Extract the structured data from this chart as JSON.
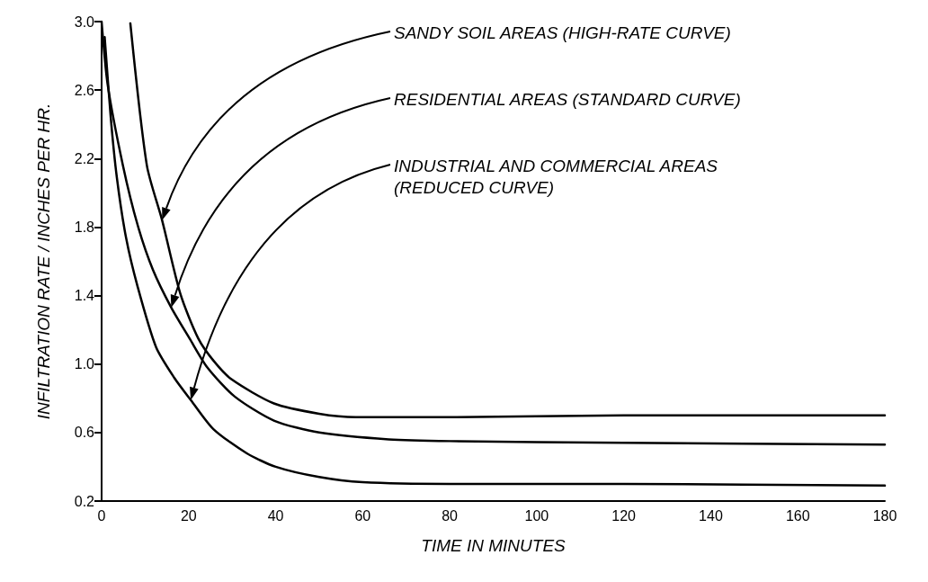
{
  "chart_data": {
    "type": "line",
    "xlabel": "TIME IN MINUTES",
    "ylabel": "INFILTRATION RATE / INCHES PER HR.",
    "xlim": [
      0,
      180
    ],
    "xticks": [
      0,
      20,
      40,
      60,
      80,
      100,
      120,
      140,
      160,
      180
    ],
    "ylim": [
      0.2,
      3.0
    ],
    "yticks": [
      0.2,
      0.6,
      {
        "value": 1.0,
        "label": "1.0"
      },
      1.4,
      1.8,
      2.2,
      2.6,
      {
        "value": 3.0,
        "label": "3.0"
      }
    ],
    "grid": false,
    "marker": "none",
    "line_style": "solid",
    "series": [
      {
        "color": "#000000",
        "x": [
          6.6,
          10.4,
          13.9,
          18.1,
          22.2,
          25.7,
          29.9,
          39.6,
          50,
          58.4,
          80,
          120,
          180
        ],
        "values": [
          2.99,
          2.16,
          1.84,
          1.41,
          1.15,
          1.02,
          0.91,
          0.77,
          0.71,
          0.69,
          0.69,
          0.7,
          0.7
        ]
      },
      {
        "color": "#000000",
        "x": [
          0,
          1.4,
          4.9,
          8.3,
          11.8,
          16,
          20.2,
          24.3,
          30.6,
          39.6,
          50,
          66,
          80,
          120,
          180
        ],
        "values": [
          3.0,
          2.63,
          2.16,
          1.81,
          1.55,
          1.33,
          1.15,
          0.98,
          0.81,
          0.67,
          0.6,
          0.56,
          0.55,
          0.54,
          0.53
        ]
      },
      {
        "color": "#000000",
        "x": [
          0.7,
          2.1,
          3.5,
          5.6,
          8.3,
          12.5,
          16.7,
          20.5,
          25.7,
          33.3,
          40,
          50,
          60,
          80,
          120,
          180
        ],
        "values": [
          2.91,
          2.44,
          2.09,
          1.74,
          1.45,
          1.1,
          0.92,
          0.79,
          0.62,
          0.48,
          0.4,
          0.34,
          0.31,
          0.3,
          0.3,
          0.29
        ]
      }
    ],
    "annotations": [
      "SANDY SOIL AREAS (HIGH-RATE CURVE)",
      "RESIDENTIAL AREAS (STANDARD CURVE)",
      "INDUSTRIAL AND COMMERCIAL AREAS\n(REDUCED CURVE)"
    ]
  }
}
